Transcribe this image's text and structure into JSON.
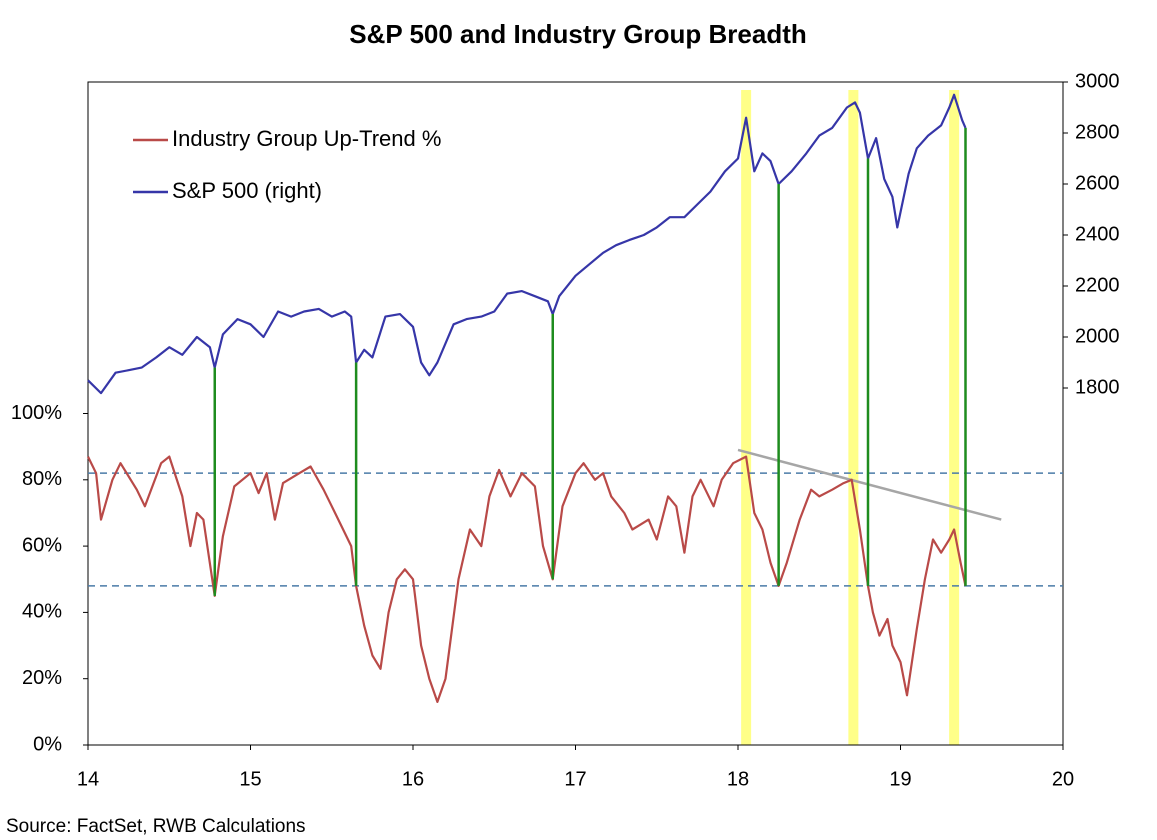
{
  "chart_data": {
    "type": "line",
    "title": "S&P 500 and Industry Group Breadth",
    "source": "Source: FactSet, RWB Calculations",
    "xlim": [
      14,
      20
    ],
    "xticks": [
      14,
      15,
      16,
      17,
      18,
      19,
      20
    ],
    "ylim": [
      0,
      200
    ],
    "yticks": [
      {
        "value": 0,
        "label": "0%"
      },
      {
        "value": 20,
        "label": "20%"
      },
      {
        "value": 40,
        "label": "40%"
      },
      {
        "value": 60,
        "label": "60%"
      },
      {
        "value": 80,
        "label": "80%"
      },
      {
        "value": 100,
        "label": "100%"
      }
    ],
    "y2lim": [
      400,
      3000
    ],
    "y2ticks": [
      1800,
      2000,
      2200,
      2400,
      2600,
      2800,
      3000
    ],
    "legend": "top-left",
    "series": [
      {
        "name": "Industry Group Up-Trend %",
        "color": "#b94a48",
        "x": [
          14.0,
          14.05,
          14.08,
          14.15,
          14.2,
          14.3,
          14.35,
          14.45,
          14.5,
          14.58,
          14.63,
          14.67,
          14.71,
          14.78,
          14.83,
          14.9,
          15.0,
          15.05,
          15.1,
          15.15,
          15.2,
          15.3,
          15.37,
          15.45,
          15.5,
          15.55,
          15.62,
          15.65,
          15.7,
          15.75,
          15.8,
          15.85,
          15.9,
          15.95,
          16.0,
          16.05,
          16.1,
          16.15,
          16.2,
          16.28,
          16.35,
          16.42,
          16.47,
          16.53,
          16.6,
          16.67,
          16.75,
          16.8,
          16.86,
          16.92,
          17.0,
          17.05,
          17.12,
          17.17,
          17.22,
          17.3,
          17.35,
          17.45,
          17.5,
          17.57,
          17.62,
          17.67,
          17.72,
          17.77,
          17.85,
          17.9,
          17.97,
          18.05,
          18.1,
          18.15,
          18.2,
          18.25,
          18.3,
          18.38,
          18.45,
          18.5,
          18.58,
          18.65,
          18.7,
          18.75,
          18.8,
          18.83,
          18.87,
          18.92,
          18.95,
          19.0,
          19.04,
          19.1,
          19.15,
          19.2,
          19.25,
          19.3,
          19.33,
          19.37,
          19.4
        ],
        "values": [
          87,
          82,
          68,
          80,
          85,
          77,
          72,
          85,
          87,
          75,
          60,
          70,
          68,
          45,
          63,
          78,
          82,
          76,
          82,
          68,
          79,
          82,
          84,
          77,
          72,
          67,
          60,
          48,
          36,
          27,
          23,
          40,
          50,
          53,
          50,
          30,
          20,
          13,
          20,
          50,
          65,
          60,
          75,
          83,
          75,
          82,
          78,
          60,
          50,
          72,
          82,
          85,
          80,
          82,
          75,
          70,
          65,
          68,
          62,
          75,
          72,
          58,
          75,
          80,
          72,
          80,
          85,
          87,
          70,
          65,
          55,
          48,
          55,
          68,
          77,
          75,
          77,
          79,
          80,
          65,
          48,
          40,
          33,
          38,
          30,
          25,
          15,
          35,
          50,
          62,
          58,
          62,
          65,
          55,
          48
        ]
      },
      {
        "name": "S&P 500 (right)",
        "color": "#3636a8",
        "axis": "y2",
        "x": [
          14.0,
          14.08,
          14.17,
          14.25,
          14.33,
          14.42,
          14.5,
          14.58,
          14.67,
          14.75,
          14.78,
          14.83,
          14.92,
          15.0,
          15.08,
          15.17,
          15.25,
          15.33,
          15.42,
          15.5,
          15.58,
          15.62,
          15.65,
          15.7,
          15.75,
          15.83,
          15.92,
          16.0,
          16.05,
          16.1,
          16.15,
          16.25,
          16.33,
          16.42,
          16.5,
          16.58,
          16.67,
          16.75,
          16.83,
          16.86,
          16.9,
          17.0,
          17.17,
          17.25,
          17.33,
          17.42,
          17.5,
          17.58,
          17.67,
          17.75,
          17.83,
          17.92,
          18.0,
          18.05,
          18.1,
          18.15,
          18.2,
          18.25,
          18.33,
          18.42,
          18.5,
          18.58,
          18.67,
          18.72,
          18.75,
          18.8,
          18.85,
          18.9,
          18.95,
          18.98,
          19.05,
          19.1,
          19.17,
          19.25,
          19.3,
          19.33,
          19.38,
          19.4
        ],
        "values": [
          1830,
          1780,
          1860,
          1870,
          1880,
          1920,
          1960,
          1930,
          2000,
          1960,
          1880,
          2010,
          2070,
          2050,
          2000,
          2100,
          2080,
          2100,
          2110,
          2080,
          2100,
          2080,
          1900,
          1950,
          1920,
          2080,
          2090,
          2040,
          1900,
          1850,
          1900,
          2050,
          2070,
          2080,
          2100,
          2170,
          2180,
          2160,
          2140,
          2090,
          2160,
          2240,
          2330,
          2360,
          2380,
          2400,
          2430,
          2470,
          2470,
          2520,
          2570,
          2650,
          2700,
          2860,
          2650,
          2720,
          2690,
          2600,
          2650,
          2720,
          2790,
          2820,
          2900,
          2920,
          2880,
          2700,
          2780,
          2620,
          2550,
          2430,
          2640,
          2740,
          2790,
          2830,
          2900,
          2950,
          2850,
          2820
        ]
      }
    ],
    "highlights": [
      18.05,
      18.71,
      19.33
    ],
    "connectors": [
      14.78,
      15.65,
      16.86,
      18.25,
      18.8,
      19.4
    ],
    "reference_lines": [
      82,
      48
    ],
    "trendline": {
      "x": [
        18.0,
        19.62
      ],
      "values": [
        89,
        68
      ]
    }
  }
}
